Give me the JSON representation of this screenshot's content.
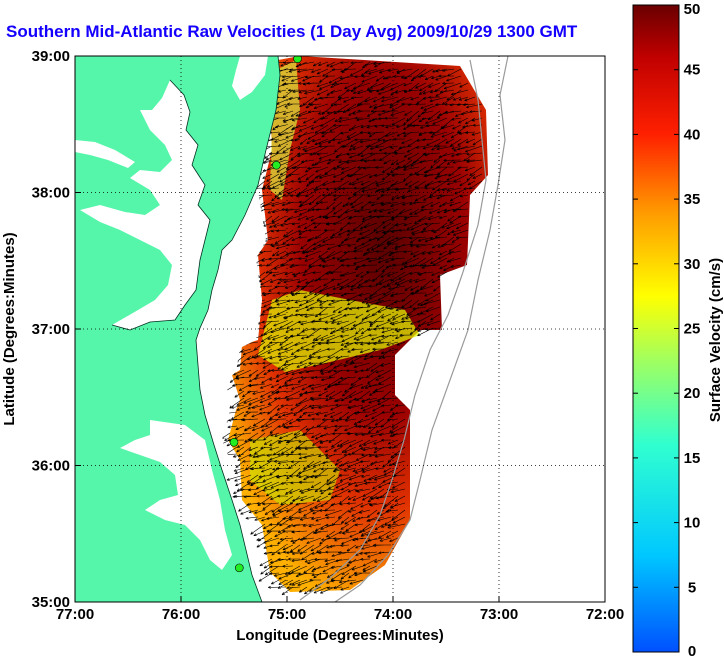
{
  "title": "Southern Mid-Atlantic Raw Velocities (1 Day Avg) 2009/10/29 1300 GMT",
  "chart_data": {
    "type": "map",
    "xlabel": "Longitude (Degrees:Minutes)",
    "ylabel": "Latitude (Degrees:Minutes)",
    "x_ticks": [
      "77:00",
      "76:00",
      "75:00",
      "74:00",
      "73:00",
      "72:00"
    ],
    "y_ticks": [
      "39:00",
      "38:00",
      "37:00",
      "36:00",
      "35:00"
    ],
    "xlim": [
      -77,
      -72
    ],
    "ylim": [
      35,
      39
    ],
    "grid": true,
    "colorbar": {
      "label": "Surface Velocity (cm/s)",
      "ticks": [
        "50",
        "45",
        "40",
        "35",
        "30",
        "25",
        "20",
        "15",
        "10",
        "5",
        "0"
      ],
      "range": [
        0,
        50
      ],
      "colormap": "jet"
    },
    "land_color": "#55f5aa",
    "station_color": "#22ee22",
    "stations": [
      {
        "lon": -74.9,
        "lat": 38.98
      },
      {
        "lon": -75.1,
        "lat": 38.2
      },
      {
        "lon": -75.5,
        "lat": 36.17
      },
      {
        "lon": -75.45,
        "lat": 35.25
      }
    ]
  }
}
